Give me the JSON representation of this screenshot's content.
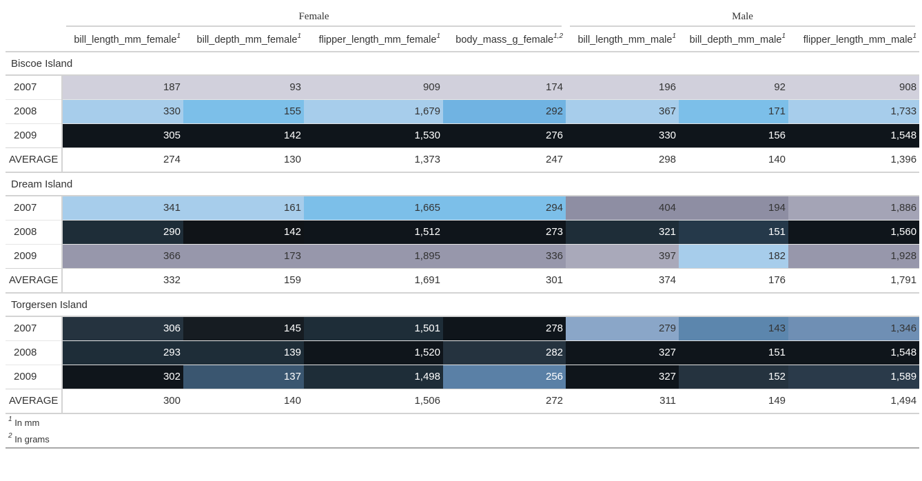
{
  "spanners": {
    "female": "Female",
    "male": "Male"
  },
  "columns": [
    {
      "label": "bill_length_mm_female",
      "note": "1"
    },
    {
      "label": "bill_depth_mm_female",
      "note": "1"
    },
    {
      "label": "flipper_length_mm_female",
      "note": "1"
    },
    {
      "label": "body_mass_g_female",
      "note": "1,2"
    },
    {
      "label": "bill_length_mm_male",
      "note": "1"
    },
    {
      "label": "bill_depth_mm_male",
      "note": "1"
    },
    {
      "label": "flipper_length_mm_male",
      "note": "1"
    }
  ],
  "groups": [
    {
      "title": "Biscoe Island",
      "rows": [
        {
          "year": "2007",
          "cells": [
            {
              "v": "187",
              "bg": "#d1d0dc",
              "fg": "#333333"
            },
            {
              "v": "93",
              "bg": "#d1d0dc",
              "fg": "#333333"
            },
            {
              "v": "909",
              "bg": "#d1d0dc",
              "fg": "#333333"
            },
            {
              "v": "174",
              "bg": "#d1d0dc",
              "fg": "#333333"
            },
            {
              "v": "196",
              "bg": "#d1d0dc",
              "fg": "#333333"
            },
            {
              "v": "92",
              "bg": "#d1d0dc",
              "fg": "#333333"
            },
            {
              "v": "908",
              "bg": "#d1d0dc",
              "fg": "#333333"
            }
          ]
        },
        {
          "year": "2008",
          "cells": [
            {
              "v": "330",
              "bg": "#a7cdeb",
              "fg": "#333333"
            },
            {
              "v": "155",
              "bg": "#7cbfe9",
              "fg": "#333333"
            },
            {
              "v": "1,679",
              "bg": "#a7cdeb",
              "fg": "#333333"
            },
            {
              "v": "292",
              "bg": "#70b3e2",
              "fg": "#333333"
            },
            {
              "v": "367",
              "bg": "#a7cdeb",
              "fg": "#333333"
            },
            {
              "v": "171",
              "bg": "#7cbfe9",
              "fg": "#333333"
            },
            {
              "v": "1,733",
              "bg": "#a7cdeb",
              "fg": "#333333"
            }
          ]
        },
        {
          "year": "2009",
          "cells": [
            {
              "v": "305",
              "bg": "#0f151b",
              "fg": "#ffffff"
            },
            {
              "v": "142",
              "bg": "#0f151b",
              "fg": "#ffffff"
            },
            {
              "v": "1,530",
              "bg": "#0f151b",
              "fg": "#ffffff"
            },
            {
              "v": "276",
              "bg": "#0f151b",
              "fg": "#ffffff"
            },
            {
              "v": "330",
              "bg": "#0f151b",
              "fg": "#ffffff"
            },
            {
              "v": "156",
              "bg": "#0f151b",
              "fg": "#ffffff"
            },
            {
              "v": "1,548",
              "bg": "#0f151b",
              "fg": "#ffffff"
            }
          ]
        }
      ],
      "average": {
        "label": "AVERAGE",
        "values": [
          "274",
          "130",
          "1,373",
          "247",
          "298",
          "140",
          "1,396"
        ]
      }
    },
    {
      "title": "Dream Island",
      "rows": [
        {
          "year": "2007",
          "cells": [
            {
              "v": "341",
              "bg": "#a7cdeb",
              "fg": "#333333"
            },
            {
              "v": "161",
              "bg": "#a7cdeb",
              "fg": "#333333"
            },
            {
              "v": "1,665",
              "bg": "#7cbfe9",
              "fg": "#333333"
            },
            {
              "v": "294",
              "bg": "#7cbfe9",
              "fg": "#333333"
            },
            {
              "v": "404",
              "bg": "#8e8ea3",
              "fg": "#333333"
            },
            {
              "v": "194",
              "bg": "#8e8ea3",
              "fg": "#333333"
            },
            {
              "v": "1,886",
              "bg": "#a4a4b6",
              "fg": "#333333"
            }
          ]
        },
        {
          "year": "2008",
          "cells": [
            {
              "v": "290",
              "bg": "#1e2d38",
              "fg": "#ffffff"
            },
            {
              "v": "142",
              "bg": "#101418",
              "fg": "#ffffff"
            },
            {
              "v": "1,512",
              "bg": "#0f151b",
              "fg": "#ffffff"
            },
            {
              "v": "273",
              "bg": "#0f151b",
              "fg": "#ffffff"
            },
            {
              "v": "321",
              "bg": "#1e2d38",
              "fg": "#ffffff"
            },
            {
              "v": "151",
              "bg": "#25394a",
              "fg": "#ffffff"
            },
            {
              "v": "1,560",
              "bg": "#0f151b",
              "fg": "#ffffff"
            }
          ]
        },
        {
          "year": "2009",
          "cells": [
            {
              "v": "366",
              "bg": "#9797ab",
              "fg": "#333333"
            },
            {
              "v": "173",
              "bg": "#9797ab",
              "fg": "#333333"
            },
            {
              "v": "1,895",
              "bg": "#9797ab",
              "fg": "#333333"
            },
            {
              "v": "336",
              "bg": "#9797ab",
              "fg": "#333333"
            },
            {
              "v": "397",
              "bg": "#a9a9ba",
              "fg": "#333333"
            },
            {
              "v": "182",
              "bg": "#a7cdeb",
              "fg": "#333333"
            },
            {
              "v": "1,928",
              "bg": "#9797ab",
              "fg": "#333333"
            }
          ]
        }
      ],
      "average": {
        "label": "AVERAGE",
        "values": [
          "332",
          "159",
          "1,691",
          "301",
          "374",
          "176",
          "1,791"
        ]
      }
    },
    {
      "title": "Torgersen Island",
      "rows": [
        {
          "year": "2007",
          "cells": [
            {
              "v": "306",
              "bg": "#25333f",
              "fg": "#ffffff"
            },
            {
              "v": "145",
              "bg": "#161c22",
              "fg": "#ffffff"
            },
            {
              "v": "1,501",
              "bg": "#1e2d38",
              "fg": "#ffffff"
            },
            {
              "v": "278",
              "bg": "#0f151b",
              "fg": "#ffffff"
            },
            {
              "v": "279",
              "bg": "#8aa6c8",
              "fg": "#333333"
            },
            {
              "v": "143",
              "bg": "#5c86ad",
              "fg": "#333333"
            },
            {
              "v": "1,346",
              "bg": "#6f8fb4",
              "fg": "#333333"
            }
          ]
        },
        {
          "year": "2008",
          "cells": [
            {
              "v": "293",
              "bg": "#1e2d38",
              "fg": "#ffffff"
            },
            {
              "v": "139",
              "bg": "#1e2d38",
              "fg": "#ffffff"
            },
            {
              "v": "1,520",
              "bg": "#0f151b",
              "fg": "#ffffff"
            },
            {
              "v": "282",
              "bg": "#25333f",
              "fg": "#ffffff"
            },
            {
              "v": "327",
              "bg": "#0f151b",
              "fg": "#ffffff"
            },
            {
              "v": "151",
              "bg": "#0f151b",
              "fg": "#ffffff"
            },
            {
              "v": "1,548",
              "bg": "#0f151b",
              "fg": "#ffffff"
            }
          ]
        },
        {
          "year": "2009",
          "cells": [
            {
              "v": "302",
              "bg": "#0f151b",
              "fg": "#ffffff"
            },
            {
              "v": "137",
              "bg": "#3a5670",
              "fg": "#ffffff"
            },
            {
              "v": "1,498",
              "bg": "#1e2d38",
              "fg": "#ffffff"
            },
            {
              "v": "256",
              "bg": "#5a80a6",
              "fg": "#ffffff"
            },
            {
              "v": "327",
              "bg": "#0f151b",
              "fg": "#ffffff"
            },
            {
              "v": "152",
              "bg": "#25333f",
              "fg": "#ffffff"
            },
            {
              "v": "1,589",
              "bg": "#2a3a4a",
              "fg": "#ffffff"
            }
          ]
        }
      ],
      "average": {
        "label": "AVERAGE",
        "values": [
          "300",
          "140",
          "1,506",
          "272",
          "311",
          "149",
          "1,494"
        ]
      }
    }
  ],
  "footnotes": [
    {
      "mark": "1",
      "text": "In mm"
    },
    {
      "mark": "2",
      "text": "In grams"
    }
  ]
}
